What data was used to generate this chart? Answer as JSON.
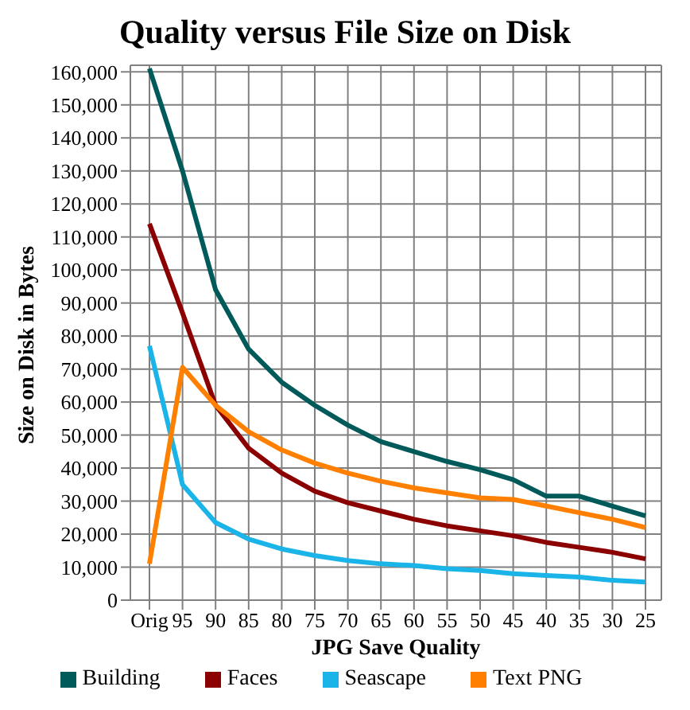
{
  "chart_data": {
    "type": "line",
    "title": "Quality versus File Size on Disk",
    "xlabel": "JPG Save Quality",
    "ylabel": "Size on Disk in Bytes",
    "categories": [
      "Orig",
      "95",
      "90",
      "85",
      "80",
      "75",
      "70",
      "65",
      "60",
      "55",
      "50",
      "45",
      "40",
      "35",
      "30",
      "25"
    ],
    "series": [
      {
        "name": "Building",
        "color": "#005a5a",
        "values": [
          161000,
          130000,
          94000,
          76000,
          66000,
          59000,
          53000,
          48000,
          45000,
          42000,
          39500,
          36500,
          31500,
          31500,
          28500,
          25500
        ]
      },
      {
        "name": "Faces",
        "color": "#8b0000",
        "values": [
          114000,
          87000,
          59000,
          46000,
          38500,
          33000,
          29500,
          27000,
          24500,
          22500,
          21000,
          19500,
          17500,
          16000,
          14500,
          12500
        ]
      },
      {
        "name": "Seascape",
        "color": "#1ab4e8",
        "values": [
          77000,
          35000,
          23500,
          18500,
          15500,
          13500,
          12000,
          11000,
          10500,
          9500,
          9000,
          8000,
          7500,
          7000,
          6000,
          5500
        ]
      },
      {
        "name": "Text PNG",
        "color": "#ff8000",
        "values": [
          11000,
          70500,
          59000,
          51000,
          45500,
          41500,
          38500,
          36000,
          34000,
          32500,
          31000,
          30500,
          28500,
          26500,
          24500,
          22000
        ]
      }
    ],
    "ylim": [
      0,
      162000
    ],
    "yticks": [
      0,
      {
        "value": 10000,
        "label": "10,000"
      },
      {
        "value": 20000,
        "label": "20,000"
      },
      {
        "value": 30000,
        "label": "30,000"
      },
      {
        "value": 40000,
        "label": "40,000"
      },
      {
        "value": 50000,
        "label": "50,000"
      },
      {
        "value": 60000,
        "label": "60,000"
      },
      {
        "value": 70000,
        "label": "70,000"
      },
      {
        "value": 80000,
        "label": "80,000"
      },
      {
        "value": 90000,
        "label": "90,000"
      },
      {
        "value": 100000,
        "label": "100,000"
      },
      {
        "value": 110000,
        "label": "110,000"
      },
      {
        "value": 120000,
        "label": "120,000"
      },
      {
        "value": 130000,
        "label": "130,000"
      },
      {
        "value": 140000,
        "label": "140,000"
      },
      {
        "value": 150000,
        "label": "150,000"
      },
      {
        "value": 160000,
        "label": "160,000"
      }
    ],
    "grid": true,
    "legend": "bottom",
    "marker": "none",
    "line_style": "solid"
  }
}
